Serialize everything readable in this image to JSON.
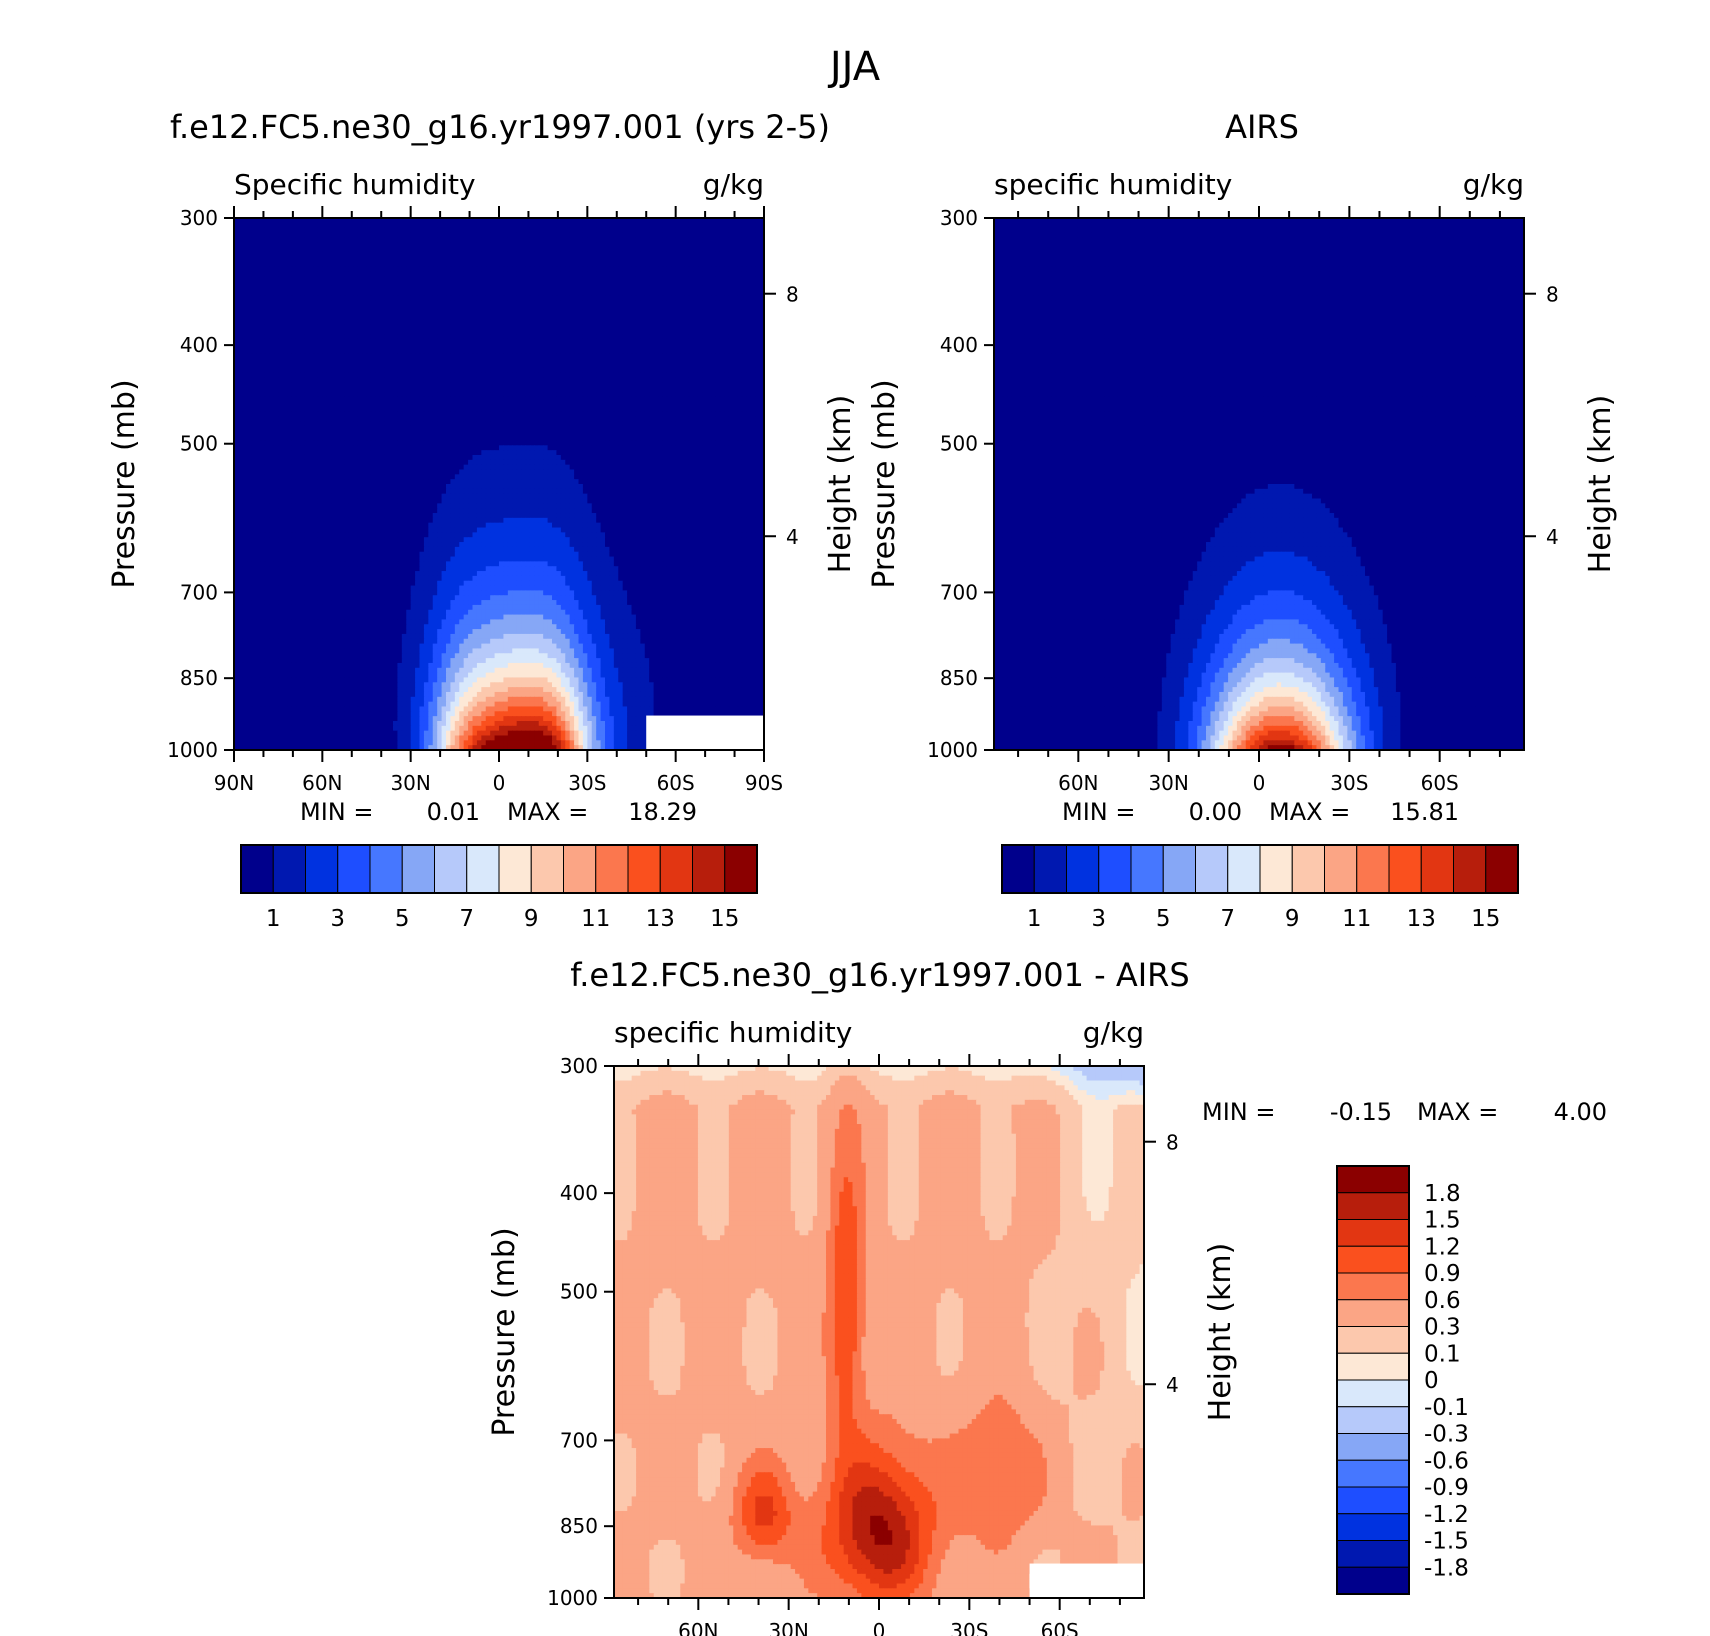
{
  "figure_title": "JJA",
  "colors": {
    "sequential": [
      "#00008c",
      "#0018b0",
      "#0032e0",
      "#1e4eff",
      "#4677ff",
      "#86a7f6",
      "#b6c9fa",
      "#d9e8fb",
      "#fde8d6",
      "#fcc8ad",
      "#fba585",
      "#fb774e",
      "#fa501e",
      "#e23612",
      "#b71e0c",
      "#8b0000"
    ],
    "diverging": [
      "#00008c",
      "#0018b0",
      "#0032e0",
      "#1e4eff",
      "#4677ff",
      "#86a7f6",
      "#b6c9fa",
      "#d9e8fb",
      "#fde8d6",
      "#fcc8ad",
      "#fba585",
      "#fb774e",
      "#fa501e",
      "#e23612",
      "#b71e0c",
      "#8b0000"
    ]
  },
  "chart_data": [
    {
      "id": "model",
      "type": "heatmap",
      "title": "f.e12.FC5.ne30_g16.yr1997.001 (yrs 2-5)",
      "left_subtitle": "Specific humidity",
      "right_subtitle": "g/kg",
      "ylabel": "Pressure (mb)",
      "y2label": "Height (km)",
      "x_ticks": [
        "90N",
        "60N",
        "30N",
        "0",
        "30S",
        "60S",
        "90S"
      ],
      "x_tick_values": [
        90,
        60,
        30,
        0,
        -30,
        -60,
        -90
      ],
      "y_ticks": [
        "300",
        "400",
        "500",
        "700",
        "850",
        "1000"
      ],
      "y_tick_values": [
        300,
        400,
        500,
        700,
        850,
        1000
      ],
      "y2_ticks": [
        "8",
        "4"
      ],
      "y2_tick_values": [
        8,
        4
      ],
      "xlim": [
        90,
        -90
      ],
      "ylim": [
        300,
        1000
      ],
      "min_label": "MIN =",
      "min_value": "0.01",
      "max_label": "MAX =",
      "max_value": "18.29",
      "colorbar_labels": [
        "1",
        "3",
        "5",
        "7",
        "9",
        "11",
        "13",
        "15"
      ],
      "levels": [
        1,
        2,
        3,
        4,
        5,
        6,
        7,
        8,
        9,
        10,
        11,
        12,
        13,
        14,
        15
      ],
      "peak_lat": -7,
      "peak_value": 18.29,
      "missing_regions": [
        {
          "lat_from": -50,
          "lat_to": -90,
          "p_from": 925,
          "p_to": 1000
        }
      ]
    },
    {
      "id": "obs",
      "type": "heatmap",
      "title": "AIRS",
      "left_subtitle": "specific humidity",
      "right_subtitle": "g/kg",
      "ylabel": "Pressure (mb)",
      "y2label": "Height (km)",
      "x_ticks": [
        "60N",
        "30N",
        "0",
        "30S",
        "60S"
      ],
      "x_tick_values": [
        60,
        30,
        0,
        -30,
        -60
      ],
      "y_ticks": [
        "300",
        "400",
        "500",
        "700",
        "850",
        "1000"
      ],
      "y_tick_values": [
        300,
        400,
        500,
        700,
        850,
        1000
      ],
      "y2_ticks": [
        "8",
        "4"
      ],
      "y2_tick_values": [
        8,
        4
      ],
      "xlim": [
        88,
        -88
      ],
      "ylim": [
        300,
        1000
      ],
      "min_label": "MIN =",
      "min_value": "0.00",
      "max_label": "MAX =",
      "max_value": "15.81",
      "colorbar_labels": [
        "1",
        "3",
        "5",
        "7",
        "9",
        "11",
        "13",
        "15"
      ],
      "levels": [
        1,
        2,
        3,
        4,
        5,
        6,
        7,
        8,
        9,
        10,
        11,
        12,
        13,
        14,
        15
      ],
      "peak_lat": -7,
      "peak_value": 15.81
    },
    {
      "id": "diff",
      "type": "heatmap",
      "title": "f.e12.FC5.ne30_g16.yr1997.001 - AIRS",
      "left_subtitle": "specific humidity",
      "right_subtitle": "g/kg",
      "ylabel": "Pressure (mb)",
      "y2label": "Height (km)",
      "x_ticks": [
        "60N",
        "30N",
        "0",
        "30S",
        "60S"
      ],
      "x_tick_values": [
        60,
        30,
        0,
        -30,
        -60
      ],
      "y_ticks": [
        "300",
        "400",
        "500",
        "700",
        "850",
        "1000"
      ],
      "y_tick_values": [
        300,
        400,
        500,
        700,
        850,
        1000
      ],
      "y2_ticks": [
        "8",
        "4"
      ],
      "y2_tick_values": [
        8,
        4
      ],
      "xlim": [
        88,
        -88
      ],
      "ylim": [
        300,
        1000
      ],
      "min_label": "MIN =",
      "min_value": "-0.15",
      "max_label": "MAX =",
      "max_value": "4.00",
      "colorbar_labels": [
        "1.8",
        "1.5",
        "1.2",
        "0.9",
        "0.6",
        "0.3",
        "0.1",
        "0",
        "-0.1",
        "-0.3",
        "-0.6",
        "-0.9",
        "-1.2",
        "-1.5",
        "-1.8"
      ],
      "levels": [
        -1.8,
        -1.5,
        -1.2,
        -0.9,
        -0.6,
        -0.3,
        -0.1,
        0,
        0.1,
        0.3,
        0.6,
        0.9,
        1.2,
        1.5,
        1.8
      ],
      "missing_regions": [
        {
          "lat_from": -50,
          "lat_to": -88,
          "p_from": 925,
          "p_to": 1000
        }
      ]
    }
  ]
}
